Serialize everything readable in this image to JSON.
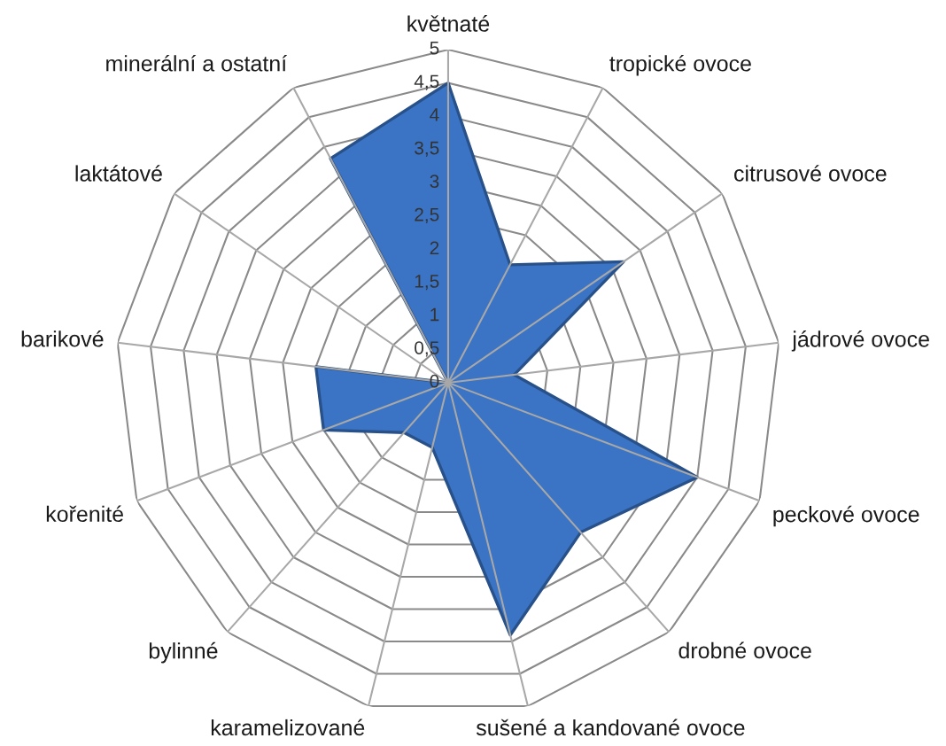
{
  "chart_data": {
    "type": "radar",
    "categories": [
      "květnaté",
      "tropické ovoce",
      "citrusové ovoce",
      "jádrové ovoce",
      "peckové ovoce",
      "drobné ovoce",
      "sušené a kandované ovoce",
      "karamelizované",
      "bylinné",
      "kořenité",
      "barikové",
      "laktátové",
      "minerální a ostatní"
    ],
    "series": [
      {
        "color": "#3b74c4",
        "values": [
          4.5,
          2,
          3.2,
          1,
          4,
          3,
          3.9,
          1,
          1,
          2,
          2,
          0,
          3.8
        ]
      }
    ],
    "ylim": [
      0,
      5
    ],
    "yticks": [
      0,
      {
        "value": 0.5,
        "label": "0,5"
      },
      1,
      {
        "value": 1.5,
        "label": "1,5"
      },
      2,
      {
        "value": 2.5,
        "label": "2,5"
      },
      3,
      {
        "value": 3.5,
        "label": "3,5"
      },
      4,
      {
        "value": 4.5,
        "label": "4,5"
      },
      5
    ],
    "grid": true
  }
}
